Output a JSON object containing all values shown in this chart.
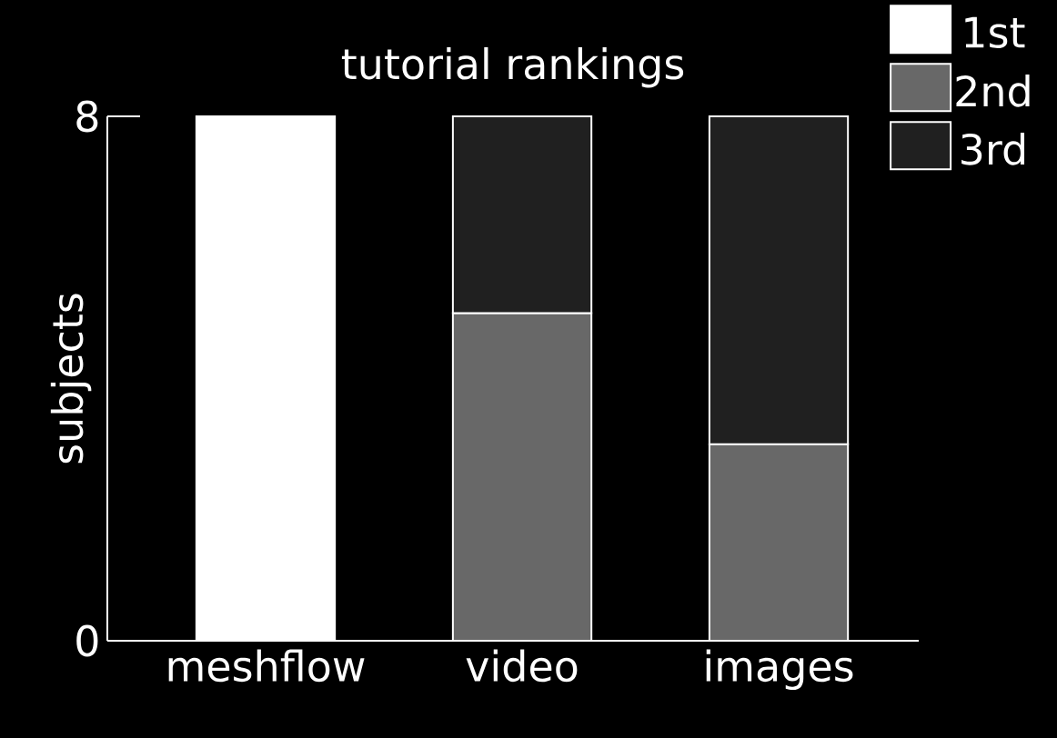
{
  "chart_data": {
    "type": "bar",
    "title": "tutorial rankings",
    "ylabel": "subjects",
    "categories": [
      "meshflow",
      "video",
      "images"
    ],
    "stacked": true,
    "series": [
      {
        "name": "1st",
        "color": "#ffffff",
        "values": [
          8,
          null,
          null
        ]
      },
      {
        "name": "2nd",
        "color": "#686868",
        "values": [
          null,
          5,
          3
        ]
      },
      {
        "name": "3rd",
        "color": "#202020",
        "values": [
          null,
          3,
          5
        ]
      }
    ],
    "ylim": [
      0,
      8
    ],
    "yticks": [
      0,
      8
    ],
    "grid": false,
    "legend": "top right"
  }
}
